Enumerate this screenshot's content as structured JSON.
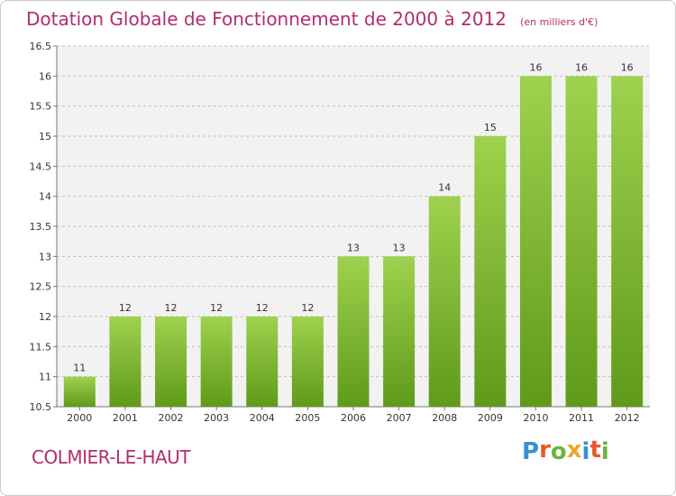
{
  "title": "Dotation Globale de Fonctionnement de 2000 à 2012",
  "subtitle": "(en milliers d'€)",
  "commune": "COLMIER-LE-HAUT",
  "logo": {
    "letters": [
      {
        "ch": "P",
        "color": "#3a8fd0"
      },
      {
        "ch": "r",
        "color": "#e8572a"
      },
      {
        "ch": "o",
        "color": "#6cb33f"
      },
      {
        "ch": "x",
        "color": "#f0a52a"
      },
      {
        "ch": "i",
        "color": "#3a8fd0"
      },
      {
        "ch": "t",
        "color": "#e8572a"
      },
      {
        "ch": "i",
        "color": "#6cb33f"
      }
    ]
  },
  "colors": {
    "bar_light": "#9fd24e",
    "bar_dark": "#5f9a1a",
    "title": "#b22d6d",
    "grid": "#bfbfbf",
    "plot_bg": "#f2f2f2"
  },
  "chart_data": {
    "type": "bar",
    "categories": [
      "2000",
      "2001",
      "2002",
      "2003",
      "2004",
      "2005",
      "2006",
      "2007",
      "2008",
      "2009",
      "2010",
      "2011",
      "2012"
    ],
    "values": [
      11,
      12,
      12,
      12,
      12,
      12,
      13,
      13,
      14,
      15,
      16,
      16,
      16
    ],
    "data_labels": [
      "11",
      "12",
      "12",
      "12",
      "12",
      "12",
      "13",
      "13",
      "14",
      "15",
      "16",
      "16",
      "16"
    ],
    "ylim": [
      10.5,
      16.5
    ],
    "yticks": [
      10.5,
      11,
      11.5,
      12,
      12.5,
      13,
      13.5,
      14,
      14.5,
      15,
      15.5,
      16,
      16.5
    ],
    "ytick_labels": [
      "10.5",
      "11",
      "11.5",
      "12",
      "12.5",
      "13",
      "13.5",
      "14",
      "14.5",
      "15",
      "15.5",
      "16",
      "16.5"
    ],
    "grid": true,
    "grid_style": "dashed"
  }
}
